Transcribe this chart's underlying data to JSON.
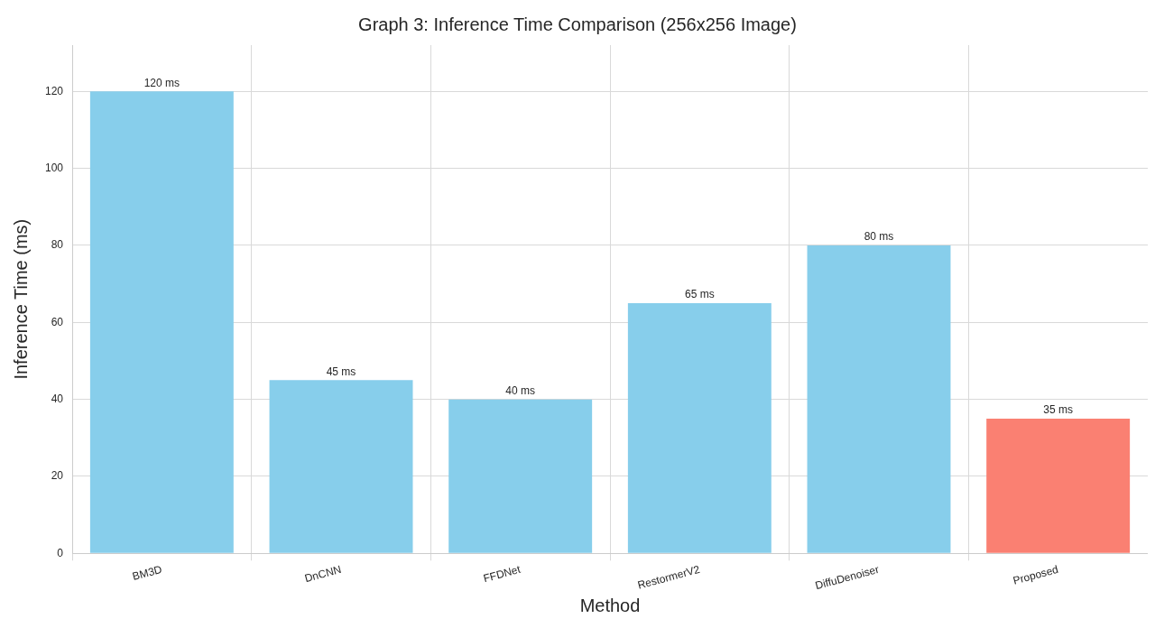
{
  "chart_data": {
    "type": "bar",
    "title": "Graph 3: Inference Time Comparison (256x256 Image)",
    "xlabel": "Method",
    "ylabel": "Inference Time (ms)",
    "categories": [
      "BM3D",
      "DnCNN",
      "FFDNet",
      "RestormerV2",
      "DiffuDenoiser",
      "Proposed"
    ],
    "values": [
      120,
      45,
      40,
      65,
      80,
      35
    ],
    "colors": [
      "#87ceeb",
      "#87ceeb",
      "#87ceeb",
      "#87ceeb",
      "#87ceeb",
      "#fa8072"
    ],
    "value_labels": [
      "120 ms",
      "45 ms",
      "40 ms",
      "65 ms",
      "80 ms",
      "35 ms"
    ],
    "ylim": [
      0,
      132
    ],
    "yticks": [
      0,
      20,
      40,
      60,
      80,
      100,
      120
    ],
    "grid": true
  }
}
